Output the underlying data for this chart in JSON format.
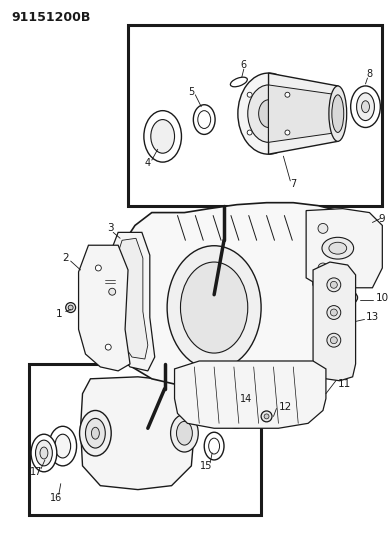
{
  "title": "91151200B",
  "bg_color": "#ffffff",
  "line_color": "#1a1a1a",
  "title_fontsize": 9,
  "label_fontsize": 7.5,
  "fig_width": 3.92,
  "fig_height": 5.33,
  "dpi": 100
}
